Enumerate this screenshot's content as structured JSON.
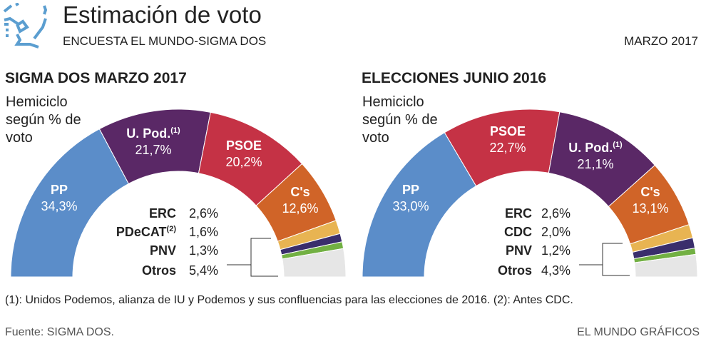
{
  "header": {
    "title": "Estimación de voto",
    "subtitle": "ENCUESTA EL MUNDO-SIGMA DOS",
    "date": "MARZO 2017",
    "logo_icon": "el-mundo-logo-icon"
  },
  "footer": {
    "footnote": "(1): Unidos Podemos, alianza de IU y Podemos y sus confluencias para las elecciones de 2016. (2): Antes CDC.",
    "source": "Fuente: SIGMA DOS.",
    "credit": "EL MUNDO GRÁFICOS"
  },
  "chart_data": [
    {
      "type": "pie",
      "subtype": "semicircle-donut",
      "title": "SIGMA DOS MARZO 2017",
      "note": "Hemiciclo según % de voto",
      "unit": "%",
      "slices": [
        {
          "name": "PP",
          "sup": "",
          "value": 34.3,
          "label": "34,3%",
          "color": "#5b8dc9",
          "labeled": true
        },
        {
          "name": "U. Pod.",
          "sup": "(1)",
          "value": 21.7,
          "label": "21,7%",
          "color": "#5a2866",
          "labeled": true
        },
        {
          "name": "PSOE",
          "sup": "",
          "value": 20.2,
          "label": "20,2%",
          "color": "#c53245",
          "labeled": true
        },
        {
          "name": "C's",
          "sup": "",
          "value": 12.6,
          "label": "12,6%",
          "color": "#d06428",
          "labeled": true
        },
        {
          "name": "ERC",
          "sup": "",
          "value": 2.6,
          "label": "2,6%",
          "color": "#e8b452",
          "labeled": false
        },
        {
          "name": "PDeCAT",
          "sup": "(2)",
          "value": 1.6,
          "label": "1,6%",
          "color": "#3a2e6c",
          "labeled": false
        },
        {
          "name": "PNV",
          "sup": "",
          "value": 1.3,
          "label": "1,3%",
          "color": "#72b043",
          "labeled": false
        },
        {
          "name": "Otros",
          "sup": "",
          "value": 5.4,
          "label": "5,4%",
          "color": "#e6e6e6",
          "labeled": false
        }
      ],
      "legend": [
        {
          "name": "ERC",
          "sup": "",
          "label": "2,6%"
        },
        {
          "name": "PDeCAT",
          "sup": "(2)",
          "label": "1,6%"
        },
        {
          "name": "PNV",
          "sup": "",
          "label": "1,3%"
        },
        {
          "name": "Otros",
          "sup": "",
          "label": "5,4%"
        }
      ]
    },
    {
      "type": "pie",
      "subtype": "semicircle-donut",
      "title": "ELECCIONES JUNIO 2016",
      "note": "Hemiciclo según % de voto",
      "unit": "%",
      "slices": [
        {
          "name": "PP",
          "sup": "",
          "value": 33.0,
          "label": "33,0%",
          "color": "#5b8dc9",
          "labeled": true
        },
        {
          "name": "PSOE",
          "sup": "",
          "value": 22.7,
          "label": "22,7%",
          "color": "#c53245",
          "labeled": true
        },
        {
          "name": "U. Pod.",
          "sup": "(1)",
          "value": 21.1,
          "label": "21,1%",
          "color": "#5a2866",
          "labeled": true
        },
        {
          "name": "C's",
          "sup": "",
          "value": 13.1,
          "label": "13,1%",
          "color": "#d06428",
          "labeled": true
        },
        {
          "name": "ERC",
          "sup": "",
          "value": 2.6,
          "label": "2,6%",
          "color": "#e8b452",
          "labeled": false
        },
        {
          "name": "CDC",
          "sup": "",
          "value": 2.0,
          "label": "2,0%",
          "color": "#3a2e6c",
          "labeled": false
        },
        {
          "name": "PNV",
          "sup": "",
          "value": 1.2,
          "label": "1,2%",
          "color": "#72b043",
          "labeled": false
        },
        {
          "name": "Otros",
          "sup": "",
          "value": 4.3,
          "label": "4,3%",
          "color": "#e6e6e6",
          "labeled": false
        }
      ],
      "legend": [
        {
          "name": "ERC",
          "sup": "",
          "label": "2,6%"
        },
        {
          "name": "CDC",
          "sup": "",
          "label": "2,0%"
        },
        {
          "name": "PNV",
          "sup": "",
          "label": "1,2%"
        },
        {
          "name": "Otros",
          "sup": "",
          "label": "4,3%"
        }
      ]
    }
  ]
}
